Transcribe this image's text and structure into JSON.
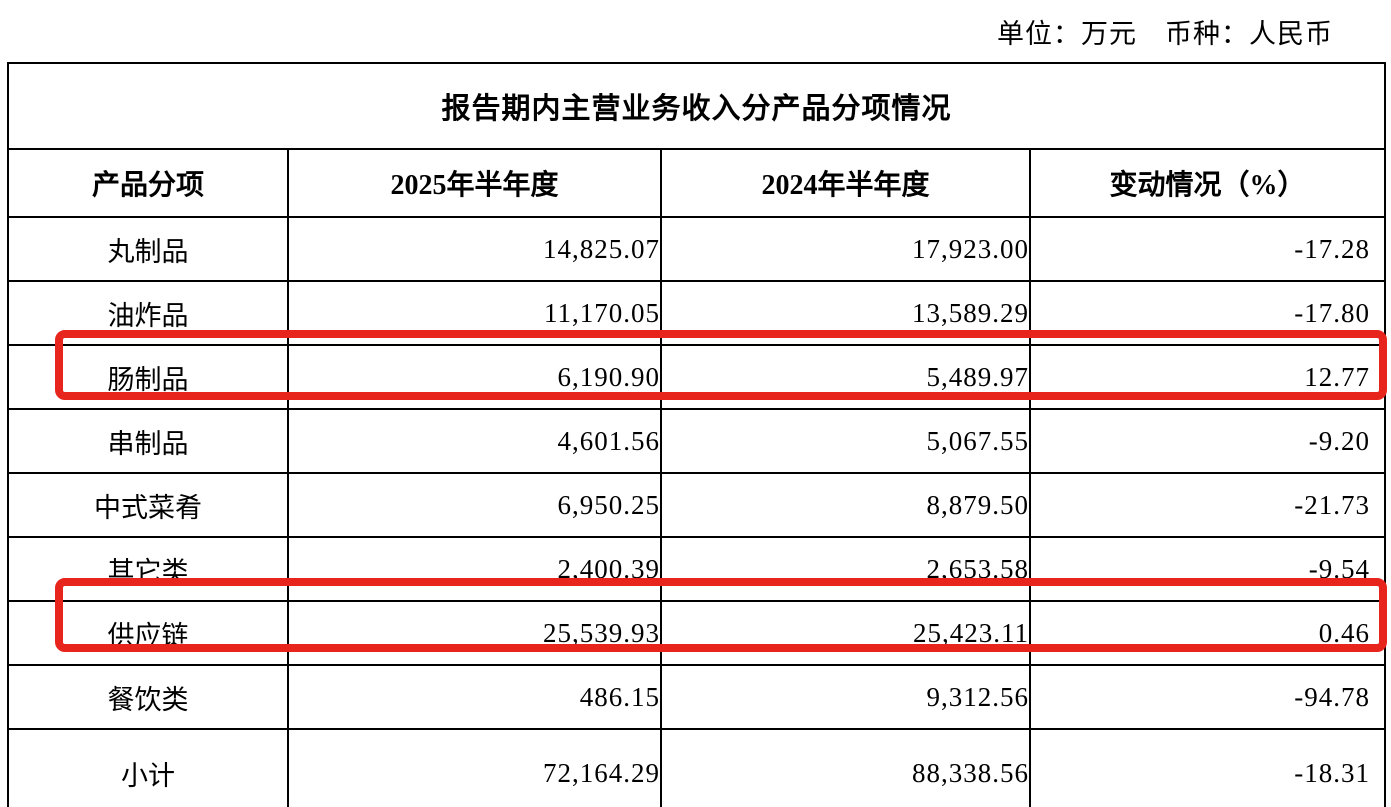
{
  "unit_line": "单位：万元　币种：人民币",
  "highlight_color": "#e8251c",
  "table": {
    "title": "报告期内主营业务收入分产品分项情况",
    "columns": [
      "产品分项",
      "2025年半年度",
      "2024年半年度",
      "变动情况（%）"
    ],
    "rows": [
      {
        "name": "丸制品",
        "h2025": "14,825.07",
        "h2024": "17,923.00",
        "change": "-17.28",
        "highlighted": false
      },
      {
        "name": "油炸品",
        "h2025": "11,170.05",
        "h2024": "13,589.29",
        "change": "-17.80",
        "highlighted": false
      },
      {
        "name": "肠制品",
        "h2025": "6,190.90",
        "h2024": "5,489.97",
        "change": "12.77",
        "highlighted": true
      },
      {
        "name": "串制品",
        "h2025": "4,601.56",
        "h2024": "5,067.55",
        "change": "-9.20",
        "highlighted": false
      },
      {
        "name": "中式菜肴",
        "h2025": "6,950.25",
        "h2024": "8,879.50",
        "change": "-21.73",
        "highlighted": false
      },
      {
        "name": "其它类",
        "h2025": "2,400.39",
        "h2024": "2,653.58",
        "change": "-9.54",
        "highlighted": false
      },
      {
        "name": "供应链",
        "h2025": "25,539.93",
        "h2024": "25,423.11",
        "change": "0.46",
        "highlighted": true
      },
      {
        "name": "餐饮类",
        "h2025": "486.15",
        "h2024": "9,312.56",
        "change": "-94.78",
        "highlighted": false
      },
      {
        "name": "小计",
        "h2025": "72,164.29",
        "h2024": "88,338.56",
        "change": "-18.31",
        "highlighted": false
      }
    ]
  }
}
